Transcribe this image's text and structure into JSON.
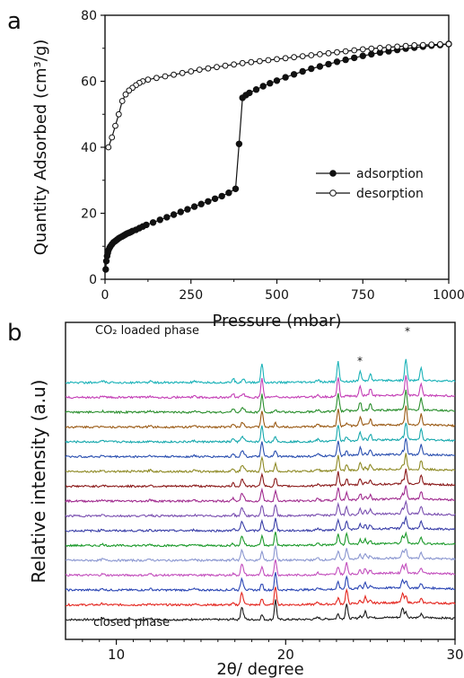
{
  "chart_data": [
    {
      "type": "line",
      "panel_label": "a",
      "xlabel": "Pressure (mbar)",
      "ylabel": "Quantity Adsorbed (cm³/g)",
      "xlim": [
        0,
        1000
      ],
      "ylim": [
        0,
        80
      ],
      "xticks": [
        0,
        250,
        500,
        750,
        1000
      ],
      "yticks": [
        0,
        20,
        40,
        60,
        80
      ],
      "grid": false,
      "legend_position": "center-right",
      "series": [
        {
          "name": "adsorption",
          "marker": "filled-circle",
          "x": [
            2,
            4,
            6,
            8,
            10,
            13,
            16,
            20,
            25,
            30,
            35,
            40,
            45,
            50,
            55,
            60,
            65,
            70,
            75,
            80,
            90,
            100,
            110,
            120,
            140,
            160,
            180,
            200,
            220,
            240,
            260,
            280,
            300,
            320,
            340,
            360,
            380,
            390,
            400,
            410,
            420,
            440,
            460,
            480,
            500,
            525,
            550,
            575,
            600,
            625,
            650,
            675,
            700,
            725,
            750,
            775,
            800,
            825,
            850,
            875,
            900,
            925,
            950,
            975,
            1000
          ],
          "y": [
            3.0,
            5.5,
            7.0,
            8.0,
            8.8,
            9.5,
            10.0,
            10.6,
            11.2,
            11.6,
            12.0,
            12.4,
            12.7,
            13.0,
            13.3,
            13.6,
            13.9,
            14.1,
            14.3,
            14.6,
            15.0,
            15.5,
            16.0,
            16.5,
            17.2,
            18.0,
            18.8,
            19.6,
            20.4,
            21.2,
            22.0,
            22.8,
            23.6,
            24.4,
            25.2,
            26.2,
            27.4,
            41.0,
            55.0,
            55.8,
            56.5,
            57.5,
            58.5,
            59.4,
            60.2,
            61.2,
            62.1,
            63.0,
            63.8,
            64.5,
            65.2,
            65.9,
            66.5,
            67.1,
            67.7,
            68.2,
            68.7,
            69.1,
            69.5,
            69.9,
            70.2,
            70.5,
            70.8,
            71.0,
            71.3
          ]
        },
        {
          "name": "desorption",
          "marker": "open-circle",
          "x": [
            1000,
            975,
            950,
            925,
            900,
            875,
            850,
            825,
            800,
            775,
            750,
            725,
            700,
            675,
            650,
            625,
            600,
            575,
            550,
            525,
            500,
            475,
            450,
            425,
            400,
            375,
            350,
            325,
            300,
            275,
            250,
            225,
            200,
            175,
            150,
            125,
            110,
            100,
            90,
            80,
            70,
            60,
            50,
            40,
            30,
            20,
            10
          ],
          "y": [
            71.3,
            71.2,
            71.1,
            71.0,
            70.9,
            70.7,
            70.5,
            70.3,
            70.1,
            69.9,
            69.7,
            69.4,
            69.1,
            68.8,
            68.5,
            68.2,
            67.9,
            67.6,
            67.3,
            67.0,
            66.7,
            66.4,
            66.1,
            65.8,
            65.5,
            65.1,
            64.7,
            64.3,
            63.9,
            63.5,
            63.0,
            62.5,
            62.0,
            61.5,
            61.0,
            60.5,
            60.0,
            59.5,
            58.8,
            58.0,
            57.2,
            56.0,
            54.0,
            50.0,
            46.5,
            43.0,
            40.0
          ]
        }
      ]
    },
    {
      "type": "line",
      "panel_label": "b",
      "xlabel": "2θ/ degree",
      "ylabel": "Relative intensity (a.u)",
      "xlim": [
        7,
        30
      ],
      "xticks": [
        10,
        20,
        30
      ],
      "grid": false,
      "annotations": [
        {
          "text": "CO₂ loaded phase",
          "at_trace": "top"
        },
        {
          "text": "closed phase",
          "at_trace": "bottom"
        },
        {
          "text": "*",
          "x": 24.5
        },
        {
          "text": "*",
          "x": 27.1
        }
      ],
      "trace_colors": [
        "#1a1a1a",
        "#e4261f",
        "#2a45b4",
        "#c34fbd",
        "#8a96d0",
        "#1c9a2b",
        "#3a3fa8",
        "#7a4fb0",
        "#a02a8e",
        "#8b1a1a",
        "#8e8a25",
        "#2a4fb0",
        "#16a8ad",
        "#9a5a14",
        "#2b8f2e",
        "#c43fb6",
        "#1ab2b8"
      ],
      "peaks": [
        {
          "x": 17.4,
          "h": 0.55
        },
        {
          "x": 19.4,
          "h": 1.0
        },
        {
          "x": 23.6,
          "h": 0.75
        },
        {
          "x": 24.7,
          "h": 0.35
        },
        {
          "x": 26.9,
          "h": 0.5
        },
        {
          "x": 16.9,
          "h": 0.2
        },
        {
          "x": 18.6,
          "h": 0.9
        },
        {
          "x": 23.1,
          "h": 0.95
        },
        {
          "x": 24.4,
          "h": 0.45
        },
        {
          "x": 25.0,
          "h": 0.35
        },
        {
          "x": 27.1,
          "h": 1.0
        },
        {
          "x": 28.0,
          "h": 0.6
        },
        {
          "x": 17.5,
          "h": 0.3
        },
        {
          "x": 21.9,
          "h": 0.15
        },
        {
          "x": 12.0,
          "h": 0.1
        },
        {
          "x": 14.6,
          "h": 0.08
        },
        {
          "x": 9.2,
          "h": 0.1
        }
      ]
    }
  ]
}
